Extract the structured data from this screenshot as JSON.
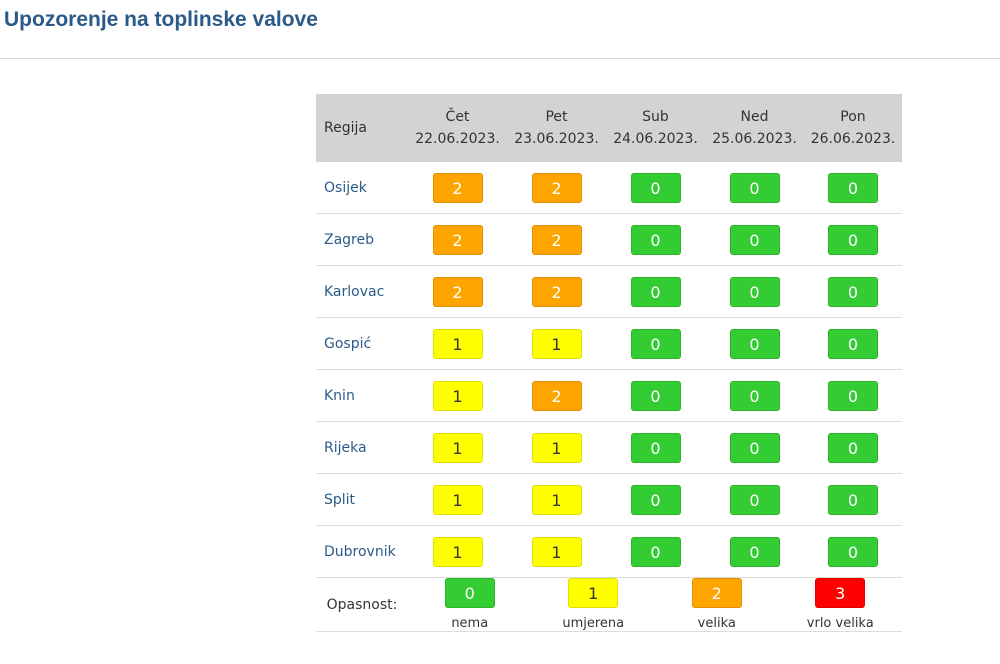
{
  "page": {
    "title": "Upozorenje na toplinske valove"
  },
  "table": {
    "region_header": "Regija",
    "days": [
      {
        "name": "Čet",
        "date": "22.06.2023."
      },
      {
        "name": "Pet",
        "date": "23.06.2023."
      },
      {
        "name": "Sub",
        "date": "24.06.2023."
      },
      {
        "name": "Ned",
        "date": "25.06.2023."
      },
      {
        "name": "Pon",
        "date": "26.06.2023."
      }
    ],
    "rows": [
      {
        "region": "Osijek",
        "levels": [
          "2",
          "2",
          "0",
          "0",
          "0"
        ]
      },
      {
        "region": "Zagreb",
        "levels": [
          "2",
          "2",
          "0",
          "0",
          "0"
        ]
      },
      {
        "region": "Karlovac",
        "levels": [
          "2",
          "2",
          "0",
          "0",
          "0"
        ]
      },
      {
        "region": "Gospić",
        "levels": [
          "1",
          "1",
          "0",
          "0",
          "0"
        ]
      },
      {
        "region": "Knin",
        "levels": [
          "1",
          "2",
          "0",
          "0",
          "0"
        ]
      },
      {
        "region": "Rijeka",
        "levels": [
          "1",
          "1",
          "0",
          "0",
          "0"
        ]
      },
      {
        "region": "Split",
        "levels": [
          "1",
          "1",
          "0",
          "0",
          "0"
        ]
      },
      {
        "region": "Dubrovnik",
        "levels": [
          "1",
          "1",
          "0",
          "0",
          "0"
        ]
      }
    ]
  },
  "legend": {
    "label": "Opasnost:",
    "items": [
      {
        "value": "0",
        "caption": "nema"
      },
      {
        "value": "1",
        "caption": "umjerena"
      },
      {
        "value": "2",
        "caption": "velika"
      },
      {
        "value": "3",
        "caption": "vrlo velika"
      }
    ]
  },
  "colors": {
    "title": "#2b5a8a",
    "header_bg": "#d3d3d3",
    "level_0": "#33cc33",
    "level_1": "#ffff00",
    "level_2": "#ffa500",
    "level_3": "#ff0000"
  }
}
